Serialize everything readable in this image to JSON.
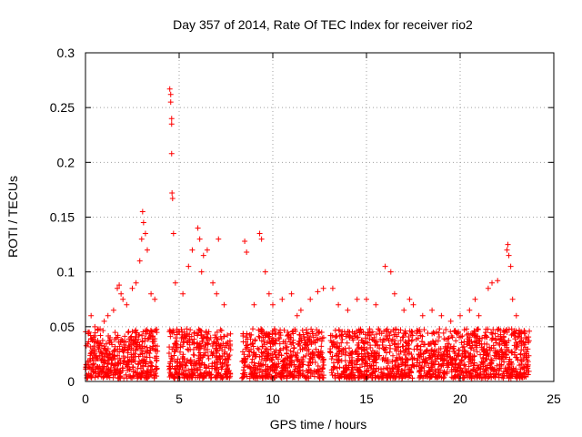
{
  "chart_data": {
    "type": "scatter",
    "title": "Day 357 of 2014, Rate Of TEC Index for receiver rio2",
    "xlabel": "GPS time / hours",
    "ylabel": "ROTI / TECUs",
    "xlim": [
      0,
      25
    ],
    "ylim": [
      0,
      0.3
    ],
    "xticks": [
      "0",
      "5",
      "10",
      "15",
      "20",
      "25"
    ],
    "yticks": [
      "0",
      "0.05",
      "0.1",
      "0.15",
      "0.2",
      "0.25",
      "0.3"
    ],
    "grid": true,
    "marker": "+",
    "color": "#ff0000",
    "series": [
      {
        "name": "ROTI",
        "note": "dense plus-marker scatter; data gaps approx 3.9-4.4 h and 7.8-8.3 h; points stop near 23.7 h",
        "x": [
          0.2,
          0.3,
          0.5,
          0.8,
          1.0,
          1.2,
          1.5,
          1.7,
          1.8,
          1.9,
          2.0,
          2.2,
          2.5,
          2.7,
          2.9,
          3.0,
          3.05,
          3.1,
          3.2,
          3.3,
          3.5,
          3.7,
          4.5,
          4.55,
          4.55,
          4.6,
          4.6,
          4.6,
          4.62,
          4.65,
          4.7,
          4.8,
          5.2,
          5.5,
          5.7,
          6.0,
          6.1,
          6.2,
          6.3,
          6.5,
          6.8,
          7.0,
          7.1,
          7.4,
          8.5,
          8.6,
          9.0,
          9.3,
          9.4,
          9.6,
          9.8,
          10.0,
          10.5,
          11.0,
          11.3,
          11.5,
          12.0,
          12.4,
          12.7,
          13.2,
          13.5,
          14.0,
          14.5,
          15.0,
          15.5,
          16.0,
          16.3,
          16.5,
          17.0,
          17.3,
          17.5,
          18.0,
          18.5,
          19.0,
          19.5,
          20.0,
          20.5,
          20.8,
          21.0,
          21.5,
          21.7,
          22.0,
          22.5,
          22.55,
          22.6,
          22.7,
          22.8,
          23.0,
          23.5
        ],
        "y": [
          0.045,
          0.06,
          0.05,
          0.042,
          0.055,
          0.06,
          0.065,
          0.085,
          0.088,
          0.08,
          0.075,
          0.07,
          0.085,
          0.09,
          0.11,
          0.13,
          0.155,
          0.145,
          0.135,
          0.12,
          0.08,
          0.075,
          0.267,
          0.262,
          0.255,
          0.24,
          0.235,
          0.208,
          0.172,
          0.167,
          0.135,
          0.09,
          0.08,
          0.105,
          0.12,
          0.14,
          0.13,
          0.1,
          0.115,
          0.12,
          0.09,
          0.08,
          0.13,
          0.07,
          0.128,
          0.118,
          0.07,
          0.135,
          0.13,
          0.1,
          0.08,
          0.07,
          0.075,
          0.08,
          0.06,
          0.065,
          0.075,
          0.082,
          0.085,
          0.085,
          0.07,
          0.065,
          0.075,
          0.075,
          0.07,
          0.105,
          0.1,
          0.08,
          0.065,
          0.075,
          0.07,
          0.06,
          0.065,
          0.06,
          0.055,
          0.06,
          0.065,
          0.075,
          0.06,
          0.085,
          0.09,
          0.092,
          0.12,
          0.125,
          0.115,
          0.105,
          0.075,
          0.06,
          0.04
        ]
      }
    ]
  }
}
